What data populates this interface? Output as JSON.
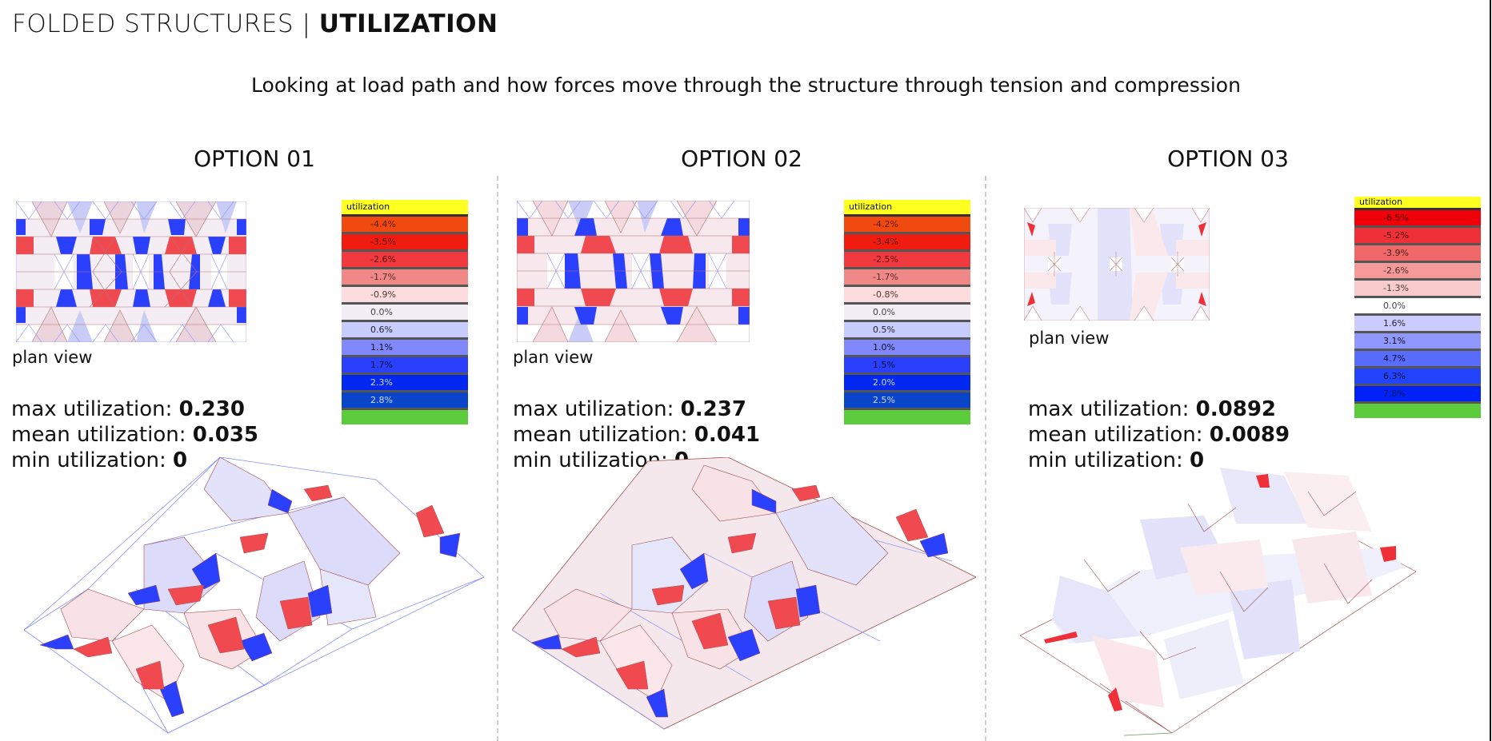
{
  "header": {
    "title_light": "FOLDED STRUCTURES | ",
    "title_bold": "UTILIZATION",
    "subtitle": "Looking at load path and how forces move through the structure through tension and compression"
  },
  "options": [
    {
      "title": "OPTION 01",
      "plan_label": "plan view",
      "stats": {
        "max_label": "max utilization: ",
        "max_value": "0.230",
        "mean_label": "mean utilization: ",
        "mean_value": "0.035",
        "min_label": "min utilization: ",
        "min_value": "0"
      },
      "legend": {
        "header": "utilization",
        "rows": [
          {
            "label": "-4.4%",
            "color": "#f04a10",
            "text": "#5a1a00"
          },
          {
            "label": "-3.5%",
            "color": "#f01c10",
            "text": "#5a0a00"
          },
          {
            "label": "-2.6%",
            "color": "#f03a40",
            "text": "#5a1010"
          },
          {
            "label": "-1.7%",
            "color": "#f08888",
            "text": "#5a2a2a"
          },
          {
            "label": "-0.9%",
            "color": "#fcdcdc",
            "text": "#553333"
          },
          {
            "label": "0.0%",
            "color": "#f2eef6",
            "text": "#444"
          },
          {
            "label": "0.6%",
            "color": "#c8ccfc",
            "text": "#223"
          },
          {
            "label": "1.1%",
            "color": "#8088fc",
            "text": "#112"
          },
          {
            "label": "1.7%",
            "color": "#2a40fc",
            "text": "#0a1040"
          },
          {
            "label": "2.3%",
            "color": "#0028f0",
            "text": "#d0d8ff"
          },
          {
            "label": "2.8%",
            "color": "#0a44c8",
            "text": "#d0d8ff"
          }
        ]
      }
    },
    {
      "title": "OPTION 02",
      "plan_label": "plan view",
      "stats": {
        "max_label": "max utilization: ",
        "max_value": "0.237",
        "mean_label": "mean utilization: ",
        "mean_value": "0.041",
        "min_label": "min utilization: ",
        "min_value": "0"
      },
      "legend": {
        "header": "utilization",
        "rows": [
          {
            "label": "-4.2%",
            "color": "#f04a10",
            "text": "#5a1a00"
          },
          {
            "label": "-3.4%",
            "color": "#f01c10",
            "text": "#5a0a00"
          },
          {
            "label": "-2.5%",
            "color": "#f03a40",
            "text": "#5a1010"
          },
          {
            "label": "-1.7%",
            "color": "#f08888",
            "text": "#5a2a2a"
          },
          {
            "label": "-0.8%",
            "color": "#fcdcdc",
            "text": "#553333"
          },
          {
            "label": "0.0%",
            "color": "#f2eef6",
            "text": "#444"
          },
          {
            "label": "0.5%",
            "color": "#c8ccfc",
            "text": "#223"
          },
          {
            "label": "1.0%",
            "color": "#8088fc",
            "text": "#112"
          },
          {
            "label": "1.5%",
            "color": "#2a40fc",
            "text": "#0a1040"
          },
          {
            "label": "2.0%",
            "color": "#0028f0",
            "text": "#d0d8ff"
          },
          {
            "label": "2.5%",
            "color": "#0a44c8",
            "text": "#d0d8ff"
          }
        ]
      }
    },
    {
      "title": "OPTION 03",
      "plan_label": "plan view",
      "stats": {
        "max_label": "max utilization: ",
        "max_value": "0.0892",
        "mean_label": "mean utilization: ",
        "mean_value": "0.0089",
        "min_label": "min utilization: ",
        "min_value": "0"
      },
      "legend": {
        "header": "utilization",
        "rows": [
          {
            "label": "-6.5%",
            "color": "#f00008",
            "text": "#4a0000"
          },
          {
            "label": "-5.2%",
            "color": "#f03038",
            "text": "#4a0a0a"
          },
          {
            "label": "-3.9%",
            "color": "#f06868",
            "text": "#4a1a1a"
          },
          {
            "label": "-2.6%",
            "color": "#f49a9a",
            "text": "#4a2a2a"
          },
          {
            "label": "-1.3%",
            "color": "#f8cccc",
            "text": "#4a3a3a"
          },
          {
            "label": "0.0%",
            "color": "#ffffff",
            "text": "#444"
          },
          {
            "label": "1.6%",
            "color": "#ccccfc",
            "text": "#223"
          },
          {
            "label": "3.1%",
            "color": "#9098fc",
            "text": "#112"
          },
          {
            "label": "4.7%",
            "color": "#5a6cfc",
            "text": "#0a1040"
          },
          {
            "label": "6.3%",
            "color": "#2244fc",
            "text": "#0a1040"
          },
          {
            "label": "7.8%",
            "color": "#0022f8",
            "text": "#0a1a60"
          }
        ]
      }
    }
  ],
  "colors": {
    "tension_red": "#f03a40",
    "compression_blue": "#2a40fc",
    "legend_header": "#ffff22",
    "legend_footer": "#5ccb3c"
  }
}
